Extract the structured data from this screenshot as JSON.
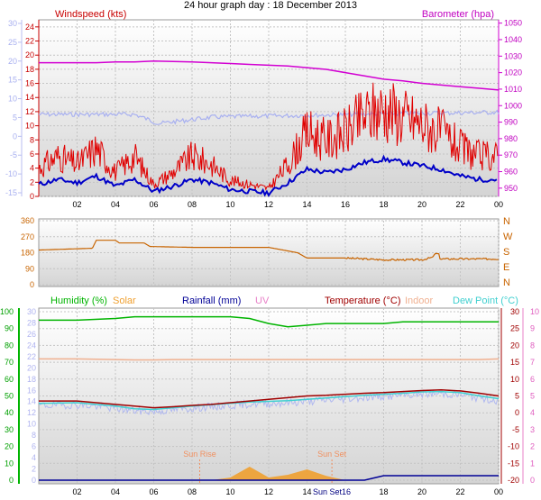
{
  "title": "24 hour graph day : 18 December 2013",
  "colors": {
    "wind": "#e00000",
    "wind_avg": "#0000c8",
    "wind_temp_faint": "#a8b0f0",
    "baro": "#d200d2",
    "dir": "#c86400",
    "humidity": "#00b400",
    "solar": "#f0a030",
    "rain": "#000096",
    "uv": "#e880c8",
    "temp": "#a00000",
    "indoor": "#f0b090",
    "dew": "#40d0d0",
    "apparent": "#b0b8f0",
    "sun_marker": "#f09060"
  },
  "x_tick_labels": [
    "02",
    "04",
    "06",
    "08",
    "10",
    "12",
    "14",
    "16",
    "18",
    "20",
    "22",
    "00"
  ],
  "chart_data": [
    {
      "type": "line",
      "title": "24 hour graph day : 18 December 2013",
      "left_label": "Windspeed (kts)",
      "right_label": "Barometer (hpa)",
      "left_ticks": [
        "0",
        "2",
        "4",
        "6",
        "8",
        "10",
        "12",
        "14",
        "16",
        "18",
        "20",
        "22",
        "24"
      ],
      "faint_left_ticks": [
        "-15",
        "-10",
        "-5",
        "0",
        "5",
        "10",
        "15",
        "20",
        "25",
        "30"
      ],
      "right_ticks": [
        "950",
        "960",
        "970",
        "980",
        "990",
        "1000",
        "1010",
        "1020",
        "1030",
        "1040",
        "1050"
      ],
      "ylim_wind": [
        0,
        25
      ],
      "ylim_baro": [
        945,
        1052
      ],
      "x": [
        0,
        1,
        2,
        3,
        4,
        5,
        6,
        7,
        8,
        9,
        10,
        11,
        12,
        13,
        14,
        15,
        16,
        17,
        18,
        19,
        20,
        21,
        22,
        23,
        24
      ],
      "series": [
        {
          "name": "Windspeed (kts)",
          "values": [
            3.5,
            5,
            4,
            6,
            3,
            5,
            1.5,
            3,
            5,
            4,
            2,
            1.5,
            1,
            4,
            8,
            7,
            8,
            10,
            11,
            10,
            9,
            8,
            6,
            5,
            5
          ]
        },
        {
          "name": "Barometer (hpa)",
          "values": [
            1026,
            1026,
            1026,
            1026,
            1026.5,
            1026.5,
            1027,
            1026.8,
            1026.5,
            1026,
            1025.5,
            1025,
            1024.5,
            1024,
            1023,
            1022,
            1020,
            1018,
            1016,
            1015,
            1013.5,
            1012.5,
            1011.5,
            1010.5,
            1009.5
          ]
        }
      ]
    },
    {
      "type": "line",
      "left_ticks": [
        "0",
        "90",
        "180",
        "270",
        "360"
      ],
      "right_labels": [
        "N",
        "W",
        "S",
        "E",
        "N"
      ],
      "ylim": [
        0,
        360
      ],
      "x": [
        0,
        2.8,
        3,
        4,
        4.2,
        5.5,
        5.8,
        8,
        10,
        12,
        13.5,
        14,
        16,
        18,
        20,
        20.8,
        21,
        22,
        24
      ],
      "series": [
        {
          "name": "Wind direction",
          "values": [
            195,
            205,
            250,
            250,
            235,
            235,
            215,
            210,
            210,
            210,
            180,
            150,
            150,
            140,
            140,
            160,
            145,
            145,
            145
          ]
        }
      ]
    },
    {
      "type": "line",
      "legend": [
        "Humidity (%)",
        "Solar",
        "Rainfall (mm)",
        "UV",
        "Temperature (°C)",
        "Indoor",
        "Dew Point (°C)"
      ],
      "humidity_ticks": [
        "0",
        "10",
        "20",
        "30",
        "40",
        "50",
        "60",
        "70",
        "80",
        "90",
        "100"
      ],
      "rain_ticks": [
        "0",
        "2",
        "4",
        "6",
        "8",
        "10",
        "12",
        "14",
        "16",
        "18",
        "20",
        "22",
        "24",
        "26",
        "28",
        "30"
      ],
      "temp_ticks": [
        "-20",
        "-15",
        "-10",
        "-5",
        "0",
        "5",
        "10",
        "15",
        "20",
        "25",
        "30"
      ],
      "uv_ticks": [
        "0",
        "1",
        "2",
        "3",
        "4",
        "5",
        "6",
        "7",
        "8",
        "9",
        "10"
      ],
      "ylim_humidity": [
        0,
        100
      ],
      "ylim_temp": [
        -20,
        30
      ],
      "annotations": [
        "Sun Rise",
        "Sun Set"
      ],
      "axis_overlap_label": "Sun Set16",
      "x": [
        0,
        2,
        4,
        5,
        6,
        7,
        8,
        9,
        10,
        11,
        12,
        13,
        14,
        15,
        16,
        17,
        18,
        19,
        20,
        21,
        22,
        23,
        24
      ],
      "series": [
        {
          "name": "Humidity (%)",
          "values": [
            95,
            95,
            96,
            97,
            97,
            97,
            97,
            97,
            97,
            96,
            93,
            91,
            92,
            93,
            93,
            93,
            93,
            94,
            94,
            94,
            94,
            94,
            94
          ]
        },
        {
          "name": "Temperature (°C)",
          "values": [
            3.5,
            3.5,
            2.5,
            2,
            1.5,
            1.8,
            2.2,
            2.5,
            3,
            3.5,
            4,
            4.5,
            5,
            5.2,
            5.5,
            5.8,
            6,
            6.3,
            6.6,
            6.8,
            6.5,
            5.8,
            5
          ]
        },
        {
          "name": "Dew Point (°C)",
          "values": [
            2.8,
            3,
            2,
            1.2,
            1,
            1.5,
            2,
            2.4,
            2.8,
            3.2,
            3.4,
            3.6,
            4,
            4.4,
            4.8,
            5.2,
            5.5,
            5.8,
            6.2,
            6.3,
            6,
            5,
            4.2
          ]
        },
        {
          "name": "Indoor",
          "values": [
            16,
            16,
            15.8,
            15.7,
            15.7,
            15.8,
            15.8,
            15.8,
            15.8,
            15.8,
            15.8,
            15.8,
            15.8,
            15.8,
            15.8,
            15.8,
            15.8,
            15.8,
            15.8,
            15.8,
            15.8,
            15.8,
            16
          ]
        },
        {
          "name": "Solar",
          "values": [
            0,
            0,
            0,
            0,
            0,
            0,
            0,
            0,
            0.5,
            2.5,
            0.5,
            1,
            2,
            0.8,
            0,
            0,
            0,
            0,
            0,
            0,
            0,
            0,
            0
          ]
        },
        {
          "name": "Rainfall (mm)",
          "values": [
            0,
            0,
            0,
            0,
            0,
            0,
            0,
            0,
            0,
            0,
            0,
            0,
            0,
            0,
            0,
            0,
            0.8,
            0.8,
            0.8,
            0.8,
            0.8,
            0.8,
            0.8
          ]
        }
      ]
    }
  ]
}
